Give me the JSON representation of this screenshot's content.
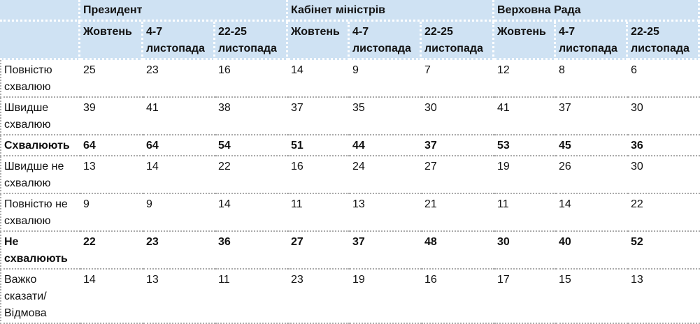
{
  "groups": [
    "Президент",
    "Кабінет міністрів",
    "Верховна Рада"
  ],
  "subheaders": [
    "Жовтень",
    "4-7 листопада",
    "22-25 листопада"
  ],
  "rows": [
    {
      "label": "Повністю схвалюю",
      "bold": false,
      "values": [
        "25",
        "23",
        "16",
        "14",
        "9",
        "7",
        "12",
        "8",
        "6"
      ]
    },
    {
      "label": "Швидше схвалюю",
      "bold": false,
      "values": [
        "39",
        "41",
        "38",
        "37",
        "35",
        "30",
        "41",
        "37",
        "30"
      ]
    },
    {
      "label": "Схвалюють",
      "bold": true,
      "values": [
        "64",
        "64",
        "54",
        "51",
        "44",
        "37",
        "53",
        "45",
        "36"
      ]
    },
    {
      "label": "Швидше не схвалюю",
      "bold": false,
      "values": [
        "13",
        "14",
        "22",
        "16",
        "24",
        "27",
        "19",
        "26",
        "30"
      ]
    },
    {
      "label": "Повністю не схвалюю",
      "bold": false,
      "values": [
        "9",
        "9",
        "14",
        "11",
        "13",
        "21",
        "11",
        "14",
        "22"
      ]
    },
    {
      "label": "Не схвалюють",
      "bold": true,
      "values": [
        "22",
        "23",
        "36",
        "27",
        "37",
        "48",
        "30",
        "40",
        "52"
      ]
    },
    {
      "label": "Важко сказати/ Відмова",
      "bold": false,
      "values": [
        "14",
        "13",
        "11",
        "23",
        "19",
        "16",
        "17",
        "15",
        "13"
      ]
    }
  ],
  "colors": {
    "header_bg": "#cfe2f3"
  }
}
